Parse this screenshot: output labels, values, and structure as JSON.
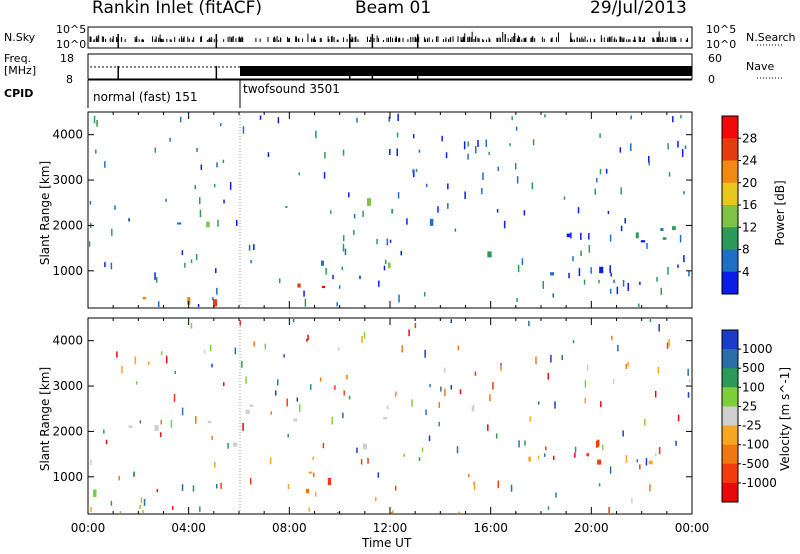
{
  "header": {
    "site": "Rankin Inlet (fitACF)",
    "beam": "Beam 01",
    "date": "29/Jul/2013"
  },
  "strips": {
    "nsky_label": "N.Sky",
    "nsky_ticks": [
      "10^5",
      "10^0"
    ],
    "nsearch_label": "N.Search",
    "nsearch_ticks": [
      "10^5",
      "10^0"
    ],
    "freq_label_1": "Freq.",
    "freq_label_2": "[MHz]",
    "freq_ticks": [
      "18",
      "8"
    ],
    "nave_label": "Nave",
    "nave_ticks": [
      "60",
      "0"
    ],
    "cpid_label": "CPID",
    "cpid_modes": [
      "normal (fast) 151",
      "twofsound 3501"
    ]
  },
  "chart_data": [
    {
      "type": "heatmap",
      "panel": "power",
      "ylabel": "Slant Range [km]",
      "xlabel": "",
      "x_ticks": [
        "00:00",
        "04:00",
        "08:00",
        "12:00",
        "16:00",
        "20:00",
        "00:00"
      ],
      "y_ticks": [
        "1000",
        "2000",
        "3000",
        "4000"
      ],
      "ylim": [
        180,
        4500
      ],
      "colorbar_label": "Power [dB]",
      "colorbar_ticks": [
        "4",
        "8",
        "12",
        "16",
        "20",
        "24",
        "28"
      ],
      "colorbar_colors": [
        "#0a1ee6",
        "#1f6fc4",
        "#2e9a5a",
        "#7dc346",
        "#e8c81e",
        "#f08a14",
        "#e53c10",
        "#f20a0a"
      ],
      "regions": [
        {
          "t0": 0.2,
          "t1": 4.8,
          "r0": 1850,
          "r1": 2350,
          "level": "mid-low"
        },
        {
          "t0": 4.5,
          "t1": 9.5,
          "r0": 1600,
          "r1": 2400,
          "level": "mid"
        },
        {
          "t0": 0.3,
          "t1": 5.8,
          "r0": 180,
          "r1": 1100,
          "level": "high"
        },
        {
          "t0": 6.2,
          "t1": 9.6,
          "r0": 400,
          "r1": 1300,
          "level": "high"
        },
        {
          "t0": 9.0,
          "t1": 14.0,
          "r0": 600,
          "r1": 2500,
          "level": "mid-low"
        },
        {
          "t0": 13.8,
          "t1": 15.8,
          "r0": 180,
          "r1": 700,
          "level": "high"
        },
        {
          "t0": 15.0,
          "t1": 24.0,
          "r0": 700,
          "r1": 2100,
          "level": "low"
        },
        {
          "t0": 22.5,
          "t1": 24.0,
          "r0": 180,
          "r1": 800,
          "level": "high"
        }
      ]
    },
    {
      "type": "heatmap",
      "panel": "velocity",
      "ylabel": "Slant Range [km]",
      "xlabel": "Time UT",
      "x_ticks": [
        "00:00",
        "04:00",
        "08:00",
        "12:00",
        "16:00",
        "20:00",
        "00:00"
      ],
      "y_ticks": [
        "1000",
        "2000",
        "3000",
        "4000"
      ],
      "ylim": [
        180,
        4500
      ],
      "colorbar_label": "Velocity [m s^-1]",
      "colorbar_ticks": [
        "1000",
        "500",
        "100",
        "25",
        "-25",
        "-100",
        "-500",
        "-1000"
      ],
      "colorbar_colors": [
        "#1a3cc8",
        "#2a6fa8",
        "#2e9a5a",
        "#7fcf3c",
        "#cfcfcf",
        "#f5a623",
        "#f07810",
        "#f23c10",
        "#e80a0a"
      ],
      "regions": [
        {
          "t0": 0.2,
          "t1": 14.0,
          "r0": 1500,
          "r1": 2600,
          "level": "near-zero"
        },
        {
          "t0": 0.2,
          "t1": 6.5,
          "r0": 180,
          "r1": 800,
          "level": "positive"
        },
        {
          "t0": 6.5,
          "t1": 11.0,
          "r0": 600,
          "r1": 1600,
          "level": "negative"
        },
        {
          "t0": 17.0,
          "t1": 24.0,
          "r0": 900,
          "r1": 2300,
          "level": "negative"
        },
        {
          "t0": 22.5,
          "t1": 24.0,
          "r0": 180,
          "r1": 900,
          "level": "negative"
        }
      ]
    }
  ]
}
